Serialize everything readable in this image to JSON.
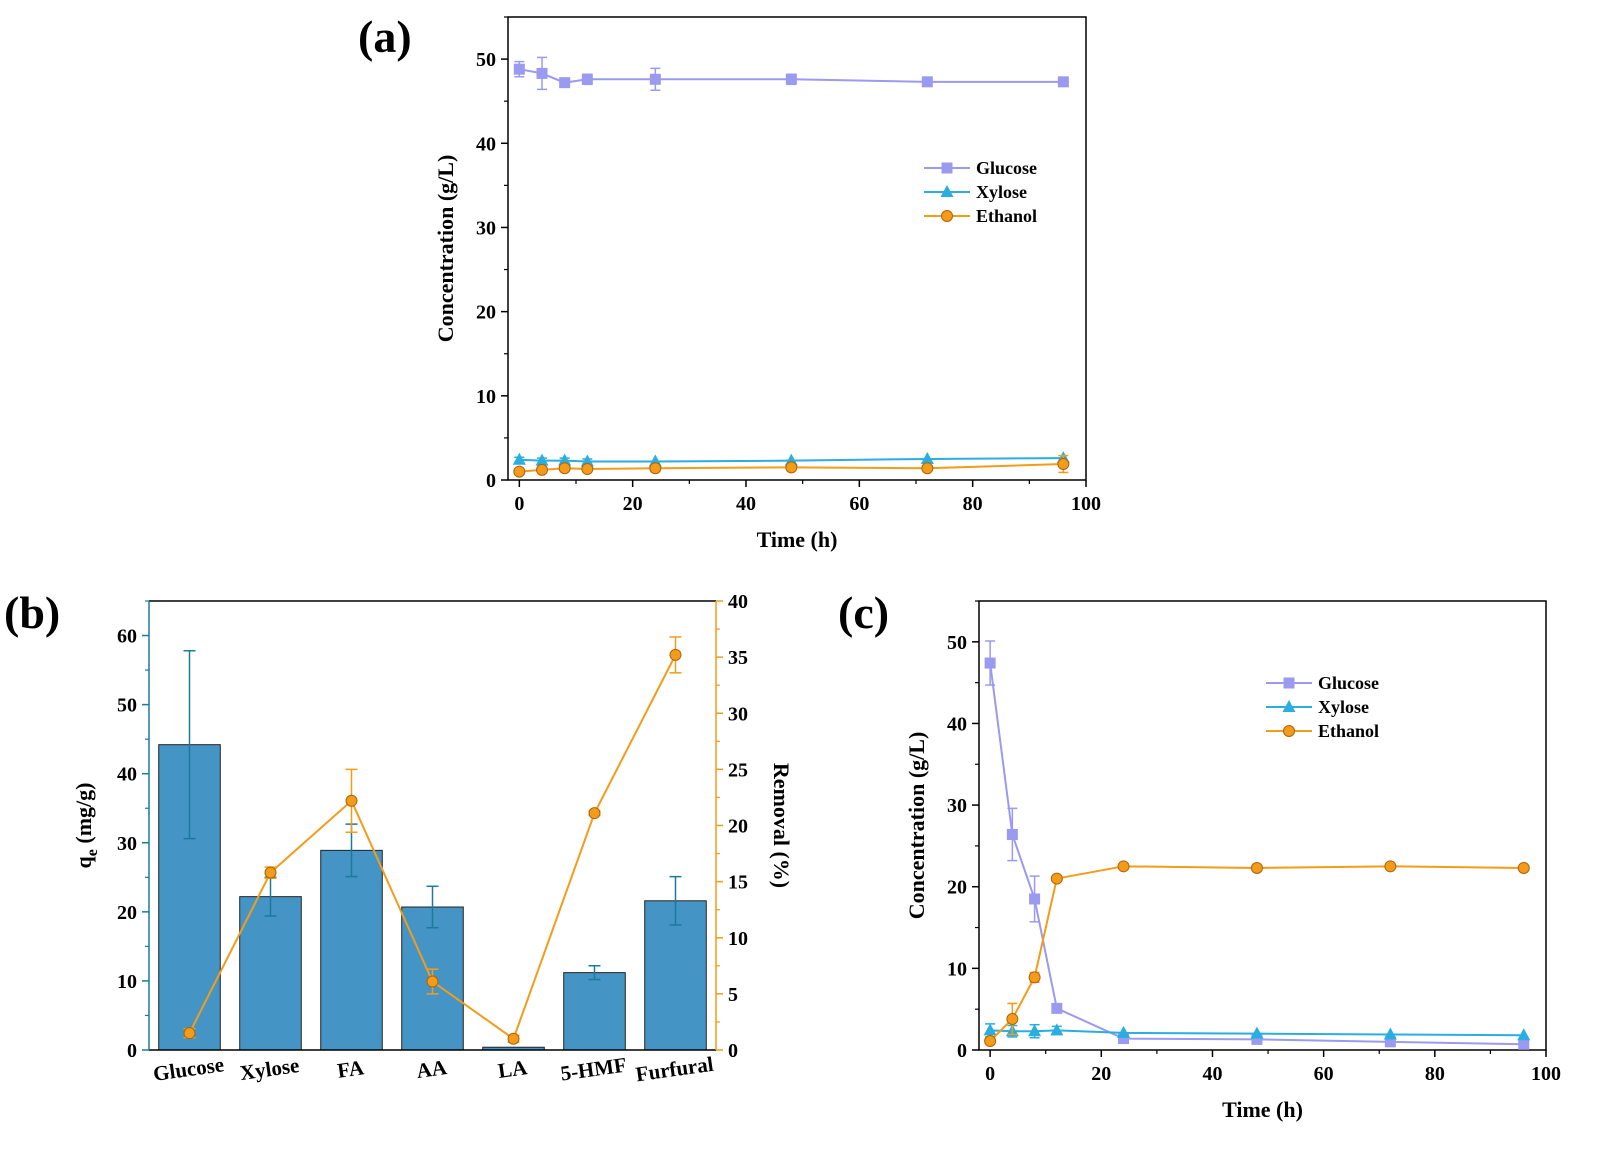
{
  "panels": {
    "a": {
      "label": "(a)"
    },
    "b": {
      "label": "(b)"
    },
    "c": {
      "label": "(c)"
    }
  },
  "chart_data": [
    {
      "id": "a",
      "type": "line",
      "xlabel": "Time (h)",
      "ylabel": "Concentration (g/L)",
      "xlim": [
        -2,
        100
      ],
      "ylim": [
        0,
        55
      ],
      "xticks": [
        0,
        20,
        40,
        60,
        80,
        100
      ],
      "yticks": [
        0,
        10,
        20,
        30,
        40,
        50
      ],
      "legend_position": "upper-right",
      "x": [
        0,
        4,
        8,
        12,
        24,
        48,
        72,
        96
      ],
      "series": [
        {
          "name": "Glucose",
          "marker": "square",
          "color": "#9a9af0",
          "values": [
            48.8,
            48.3,
            47.2,
            47.6,
            47.6,
            47.6,
            47.3,
            47.3
          ],
          "errors": [
            0.9,
            1.9,
            0.3,
            0.6,
            1.3,
            0.6,
            0.4,
            0.4
          ]
        },
        {
          "name": "Xylose",
          "marker": "triangle",
          "color": "#2aaee0",
          "values": [
            2.4,
            2.3,
            2.3,
            2.2,
            2.2,
            2.3,
            2.5,
            2.6
          ],
          "errors": [
            0.3,
            0.3,
            0.3,
            0.3,
            0.2,
            0.2,
            0.2,
            0.2
          ]
        },
        {
          "name": "Ethanol",
          "marker": "circle",
          "color": "#f39c1a",
          "values": [
            1.0,
            1.2,
            1.4,
            1.3,
            1.4,
            1.5,
            1.4,
            1.9
          ],
          "errors": [
            0.2,
            0.2,
            0.2,
            0.2,
            0.4,
            0.4,
            0.3,
            1.0
          ]
        }
      ]
    },
    {
      "id": "b",
      "type": "bar",
      "categories": [
        "Glucose",
        "Xylose",
        "FA",
        "AA",
        "LA",
        "5-HMF",
        "Furfural"
      ],
      "ylabel": "qe (mg/g)",
      "ylabel_main": "q",
      "ylabel_sub": "e",
      "ylabel_rest": " (mg/g)",
      "y2label": "Removal (%)",
      "ylim": [
        0,
        65
      ],
      "y2lim": [
        0,
        40
      ],
      "yticks": [
        0,
        10,
        20,
        30,
        40,
        50,
        60
      ],
      "y2ticks": [
        0,
        5,
        10,
        15,
        20,
        25,
        30,
        35,
        40
      ],
      "bar_color": "#4494c6",
      "line_color": "#f39c1a",
      "left_axis_color": "#1b7a9c",
      "right_axis_color": "#f39c1a",
      "series": [
        {
          "name": "qe",
          "axis": "left",
          "type": "bar",
          "values": [
            44.2,
            22.2,
            28.9,
            20.7,
            0.4,
            11.2,
            21.6
          ],
          "errors": [
            13.6,
            2.8,
            3.8,
            3.0,
            0.1,
            1.0,
            3.5
          ]
        },
        {
          "name": "Removal",
          "axis": "right",
          "type": "line",
          "values": [
            1.5,
            15.8,
            22.2,
            6.1,
            1.0,
            21.1,
            35.2
          ],
          "errors": [
            0.4,
            0.5,
            2.8,
            1.1,
            0.3,
            0.2,
            1.6
          ]
        }
      ]
    },
    {
      "id": "c",
      "type": "line",
      "xlabel": "Time (h)",
      "ylabel": "Concentration (g/L)",
      "xlim": [
        -2,
        100
      ],
      "ylim": [
        0,
        55
      ],
      "xticks": [
        0,
        20,
        40,
        60,
        80,
        100
      ],
      "yticks": [
        0,
        10,
        20,
        30,
        40,
        50
      ],
      "legend_position": "upper-right",
      "x": [
        0,
        4,
        8,
        12,
        24,
        48,
        72,
        96
      ],
      "series": [
        {
          "name": "Glucose",
          "marker": "square",
          "color": "#9a9af0",
          "values": [
            47.4,
            26.4,
            18.5,
            5.1,
            1.4,
            1.3,
            1.0,
            0.7
          ],
          "errors": [
            2.7,
            3.2,
            2.8,
            0.3,
            0.2,
            0.2,
            0.5,
            0.2
          ]
        },
        {
          "name": "Xylose",
          "marker": "triangle",
          "color": "#2aaee0",
          "values": [
            2.4,
            2.3,
            2.3,
            2.4,
            2.1,
            2.0,
            1.9,
            1.8
          ],
          "errors": [
            0.8,
            0.7,
            0.8,
            0.5,
            0.2,
            0.2,
            0.2,
            0.2
          ]
        },
        {
          "name": "Ethanol",
          "marker": "circle",
          "color": "#f39c1a",
          "values": [
            1.1,
            3.8,
            8.9,
            21.0,
            22.5,
            22.3,
            22.5,
            22.3
          ],
          "errors": [
            0.3,
            1.9,
            0.6,
            0.2,
            0.3,
            0.2,
            0.3,
            0.2
          ]
        }
      ]
    }
  ]
}
